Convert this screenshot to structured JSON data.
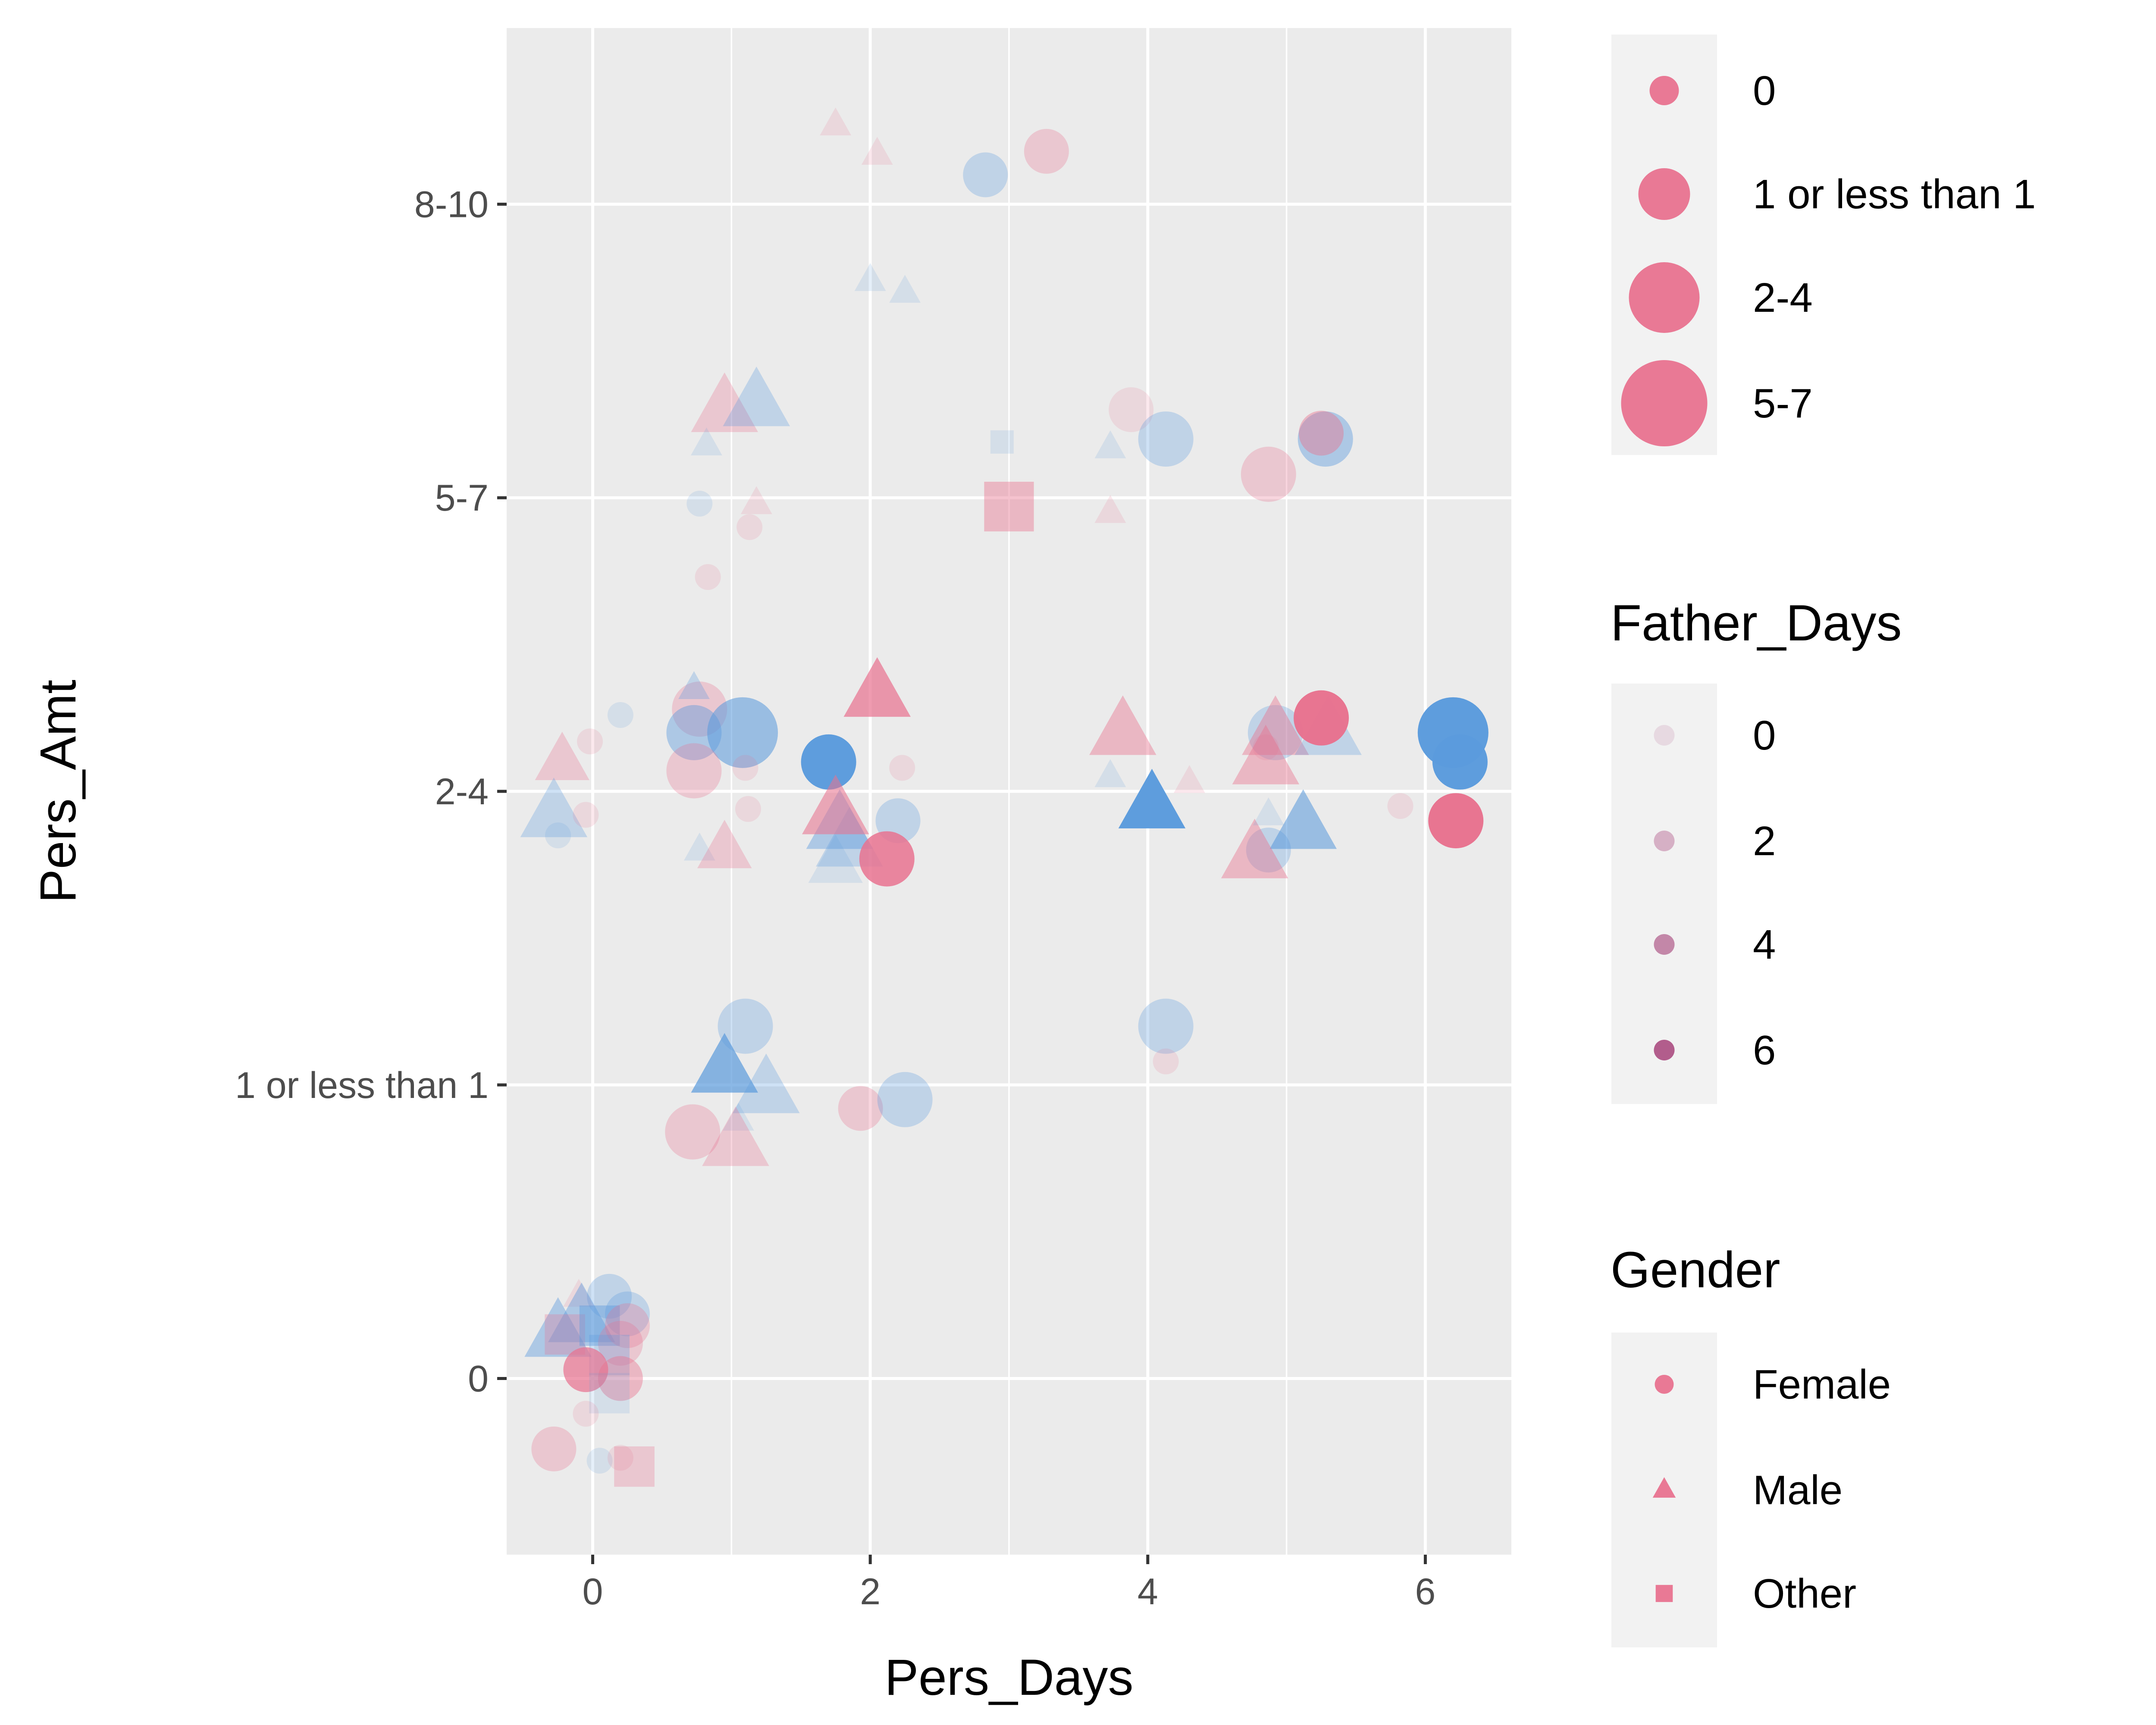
{
  "chart_data": {
    "type": "scatter",
    "title": "",
    "xlabel": "Pers_Days",
    "ylabel": "Pers_Amt",
    "xlim": [
      -0.62,
      6.62
    ],
    "ylim": [
      -0.6,
      4.6
    ],
    "x_ticks": [
      0,
      2,
      4,
      6
    ],
    "y_ticks": [
      {
        "value": 0,
        "label": "0"
      },
      {
        "value": 1,
        "label": "1 or less than 1"
      },
      {
        "value": 2,
        "label": "2-4"
      },
      {
        "value": 3,
        "label": "5-7"
      },
      {
        "value": 4,
        "label": "8-10"
      }
    ],
    "grid": true,
    "legend_position": "right",
    "colors": {
      "female": "#e8728f",
      "male": "#5b9bdc",
      "other": "#e8728f",
      "panel": "#ebebeb",
      "grid": "#ffffff",
      "legend_key_bg": "#f2f2f2"
    },
    "size_legend": {
      "title": "",
      "entries": [
        {
          "label": "0",
          "level": 0
        },
        {
          "label": "1 or less than 1",
          "level": 1
        },
        {
          "label": "2-4",
          "level": 2
        },
        {
          "label": "5-7",
          "level": 3
        }
      ]
    },
    "alpha_legend": {
      "title": "Father_Days",
      "entries": [
        {
          "label": "0",
          "value": 0
        },
        {
          "label": "2",
          "value": 2
        },
        {
          "label": "4",
          "value": 4
        },
        {
          "label": "6",
          "value": 6
        }
      ]
    },
    "shape_legend": {
      "title": "Gender",
      "entries": [
        {
          "label": "Female",
          "shape": "circle"
        },
        {
          "label": "Male",
          "shape": "triangle"
        },
        {
          "label": "Other",
          "shape": "square"
        }
      ]
    },
    "points": [
      {
        "x": 2.83,
        "y": 4.1,
        "gender": "Male",
        "shape": "circle",
        "size": 1,
        "alpha": 1
      },
      {
        "x": 3.27,
        "y": 4.18,
        "gender": "Female",
        "shape": "circle",
        "size": 1,
        "alpha": 1
      },
      {
        "x": 1.75,
        "y": 4.27,
        "gender": "Female",
        "shape": "triangle",
        "size": 0,
        "alpha": 0
      },
      {
        "x": 2.05,
        "y": 4.17,
        "gender": "Female",
        "shape": "triangle",
        "size": 0,
        "alpha": 0
      },
      {
        "x": 2.0,
        "y": 3.74,
        "gender": "Male",
        "shape": "triangle",
        "size": 0,
        "alpha": 0
      },
      {
        "x": 2.25,
        "y": 3.7,
        "gender": "Male",
        "shape": "triangle",
        "size": 0,
        "alpha": 0
      },
      {
        "x": 0.95,
        "y": 3.3,
        "gender": "Female",
        "shape": "triangle",
        "size": 2,
        "alpha": 1
      },
      {
        "x": 1.18,
        "y": 3.32,
        "gender": "Male",
        "shape": "triangle",
        "size": 2,
        "alpha": 1
      },
      {
        "x": 0.82,
        "y": 3.18,
        "gender": "Male",
        "shape": "triangle",
        "size": 0,
        "alpha": 0
      },
      {
        "x": 3.88,
        "y": 3.3,
        "gender": "Female",
        "shape": "circle",
        "size": 1,
        "alpha": 0
      },
      {
        "x": 4.13,
        "y": 3.2,
        "gender": "Male",
        "shape": "circle",
        "size": 2,
        "alpha": 1
      },
      {
        "x": 5.28,
        "y": 3.2,
        "gender": "Male",
        "shape": "circle",
        "size": 2,
        "alpha": 2
      },
      {
        "x": 5.25,
        "y": 3.22,
        "gender": "Female",
        "shape": "circle",
        "size": 1,
        "alpha": 2
      },
      {
        "x": 4.87,
        "y": 3.08,
        "gender": "Female",
        "shape": "circle",
        "size": 2,
        "alpha": 1
      },
      {
        "x": 2.95,
        "y": 3.19,
        "gender": "Male",
        "shape": "square",
        "size": 0,
        "alpha": 0
      },
      {
        "x": 3.73,
        "y": 3.17,
        "gender": "Male",
        "shape": "triangle",
        "size": 0,
        "alpha": 0
      },
      {
        "x": 3.0,
        "y": 2.97,
        "gender": "Female",
        "shape": "square",
        "size": 2,
        "alpha": 2
      },
      {
        "x": 3.73,
        "y": 2.95,
        "gender": "Female",
        "shape": "triangle",
        "size": 0,
        "alpha": 0
      },
      {
        "x": 0.77,
        "y": 2.98,
        "gender": "Male",
        "shape": "circle",
        "size": 0,
        "alpha": 0
      },
      {
        "x": 1.18,
        "y": 2.98,
        "gender": "Female",
        "shape": "triangle",
        "size": 0,
        "alpha": 0
      },
      {
        "x": 1.13,
        "y": 2.9,
        "gender": "Female",
        "shape": "circle",
        "size": 0,
        "alpha": 0
      },
      {
        "x": 0.83,
        "y": 2.73,
        "gender": "Female",
        "shape": "circle",
        "size": 0,
        "alpha": 0
      },
      {
        "x": 0.77,
        "y": 2.28,
        "gender": "Female",
        "shape": "circle",
        "size": 2,
        "alpha": 1
      },
      {
        "x": 0.73,
        "y": 2.2,
        "gender": "Male",
        "shape": "circle",
        "size": 2,
        "alpha": 2
      },
      {
        "x": 1.08,
        "y": 2.2,
        "gender": "Male",
        "shape": "circle",
        "size": 3,
        "alpha": 3
      },
      {
        "x": 0.73,
        "y": 2.07,
        "gender": "Female",
        "shape": "circle",
        "size": 2,
        "alpha": 1
      },
      {
        "x": 0.73,
        "y": 2.35,
        "gender": "Male",
        "shape": "triangle",
        "size": 0,
        "alpha": 1
      },
      {
        "x": 0.2,
        "y": 2.26,
        "gender": "Male",
        "shape": "circle",
        "size": 0,
        "alpha": 0
      },
      {
        "x": -0.02,
        "y": 2.17,
        "gender": "Female",
        "shape": "circle",
        "size": 0,
        "alpha": 0
      },
      {
        "x": -0.22,
        "y": 2.1,
        "gender": "Female",
        "shape": "triangle",
        "size": 1,
        "alpha": 1
      },
      {
        "x": -0.28,
        "y": 1.92,
        "gender": "Male",
        "shape": "triangle",
        "size": 2,
        "alpha": 1
      },
      {
        "x": -0.25,
        "y": 1.85,
        "gender": "Male",
        "shape": "circle",
        "size": 0,
        "alpha": 0
      },
      {
        "x": -0.05,
        "y": 1.92,
        "gender": "Female",
        "shape": "circle",
        "size": 0,
        "alpha": 0
      },
      {
        "x": 0.77,
        "y": 1.8,
        "gender": "Male",
        "shape": "triangle",
        "size": 0,
        "alpha": 0
      },
      {
        "x": 0.95,
        "y": 1.8,
        "gender": "Female",
        "shape": "triangle",
        "size": 1,
        "alpha": 1
      },
      {
        "x": 1.1,
        "y": 2.08,
        "gender": "Female",
        "shape": "circle",
        "size": 0,
        "alpha": 0
      },
      {
        "x": 1.12,
        "y": 1.94,
        "gender": "Female",
        "shape": "circle",
        "size": 0,
        "alpha": 0
      },
      {
        "x": 1.7,
        "y": 2.1,
        "gender": "Male",
        "shape": "circle",
        "size": 2,
        "alpha": 6
      },
      {
        "x": 2.05,
        "y": 2.33,
        "gender": "Female",
        "shape": "triangle",
        "size": 2,
        "alpha": 4
      },
      {
        "x": 2.23,
        "y": 2.08,
        "gender": "Female",
        "shape": "circle",
        "size": 0,
        "alpha": 0
      },
      {
        "x": 2.2,
        "y": 1.9,
        "gender": "Male",
        "shape": "circle",
        "size": 1,
        "alpha": 1
      },
      {
        "x": 1.78,
        "y": 1.88,
        "gender": "Male",
        "shape": "triangle",
        "size": 2,
        "alpha": 2
      },
      {
        "x": 1.85,
        "y": 1.82,
        "gender": "Male",
        "shape": "triangle",
        "size": 2,
        "alpha": 1
      },
      {
        "x": 1.75,
        "y": 1.75,
        "gender": "Male",
        "shape": "triangle",
        "size": 1,
        "alpha": 0
      },
      {
        "x": 1.75,
        "y": 1.93,
        "gender": "Female",
        "shape": "triangle",
        "size": 2,
        "alpha": 3
      },
      {
        "x": 2.12,
        "y": 1.77,
        "gender": "Female",
        "shape": "circle",
        "size": 2,
        "alpha": 5
      },
      {
        "x": 3.82,
        "y": 2.2,
        "gender": "Female",
        "shape": "triangle",
        "size": 2,
        "alpha": 2
      },
      {
        "x": 4.03,
        "y": 1.95,
        "gender": "Male",
        "shape": "triangle",
        "size": 2,
        "alpha": 6
      },
      {
        "x": 3.73,
        "y": 2.05,
        "gender": "Male",
        "shape": "triangle",
        "size": 0,
        "alpha": 0
      },
      {
        "x": 4.3,
        "y": 2.03,
        "gender": "Female",
        "shape": "triangle",
        "size": 0,
        "alpha": 0
      },
      {
        "x": 4.92,
        "y": 2.2,
        "gender": "Male",
        "shape": "circle",
        "size": 2,
        "alpha": 1
      },
      {
        "x": 4.92,
        "y": 2.2,
        "gender": "Female",
        "shape": "triangle",
        "size": 2,
        "alpha": 2
      },
      {
        "x": 5.3,
        "y": 2.2,
        "gender": "Male",
        "shape": "triangle",
        "size": 2,
        "alpha": 1
      },
      {
        "x": 4.85,
        "y": 2.1,
        "gender": "Female",
        "shape": "triangle",
        "size": 2,
        "alpha": 2
      },
      {
        "x": 4.85,
        "y": 2.15,
        "gender": "Female",
        "shape": "circle",
        "size": 0,
        "alpha": 0
      },
      {
        "x": 5.25,
        "y": 2.25,
        "gender": "Female",
        "shape": "circle",
        "size": 2,
        "alpha": 6
      },
      {
        "x": 5.12,
        "y": 1.88,
        "gender": "Male",
        "shape": "triangle",
        "size": 2,
        "alpha": 3
      },
      {
        "x": 4.87,
        "y": 1.8,
        "gender": "Male",
        "shape": "circle",
        "size": 1,
        "alpha": 1
      },
      {
        "x": 4.77,
        "y": 1.78,
        "gender": "Female",
        "shape": "triangle",
        "size": 2,
        "alpha": 2
      },
      {
        "x": 4.87,
        "y": 1.92,
        "gender": "Male",
        "shape": "triangle",
        "size": 0,
        "alpha": 0
      },
      {
        "x": 6.2,
        "y": 2.2,
        "gender": "Male",
        "shape": "circle",
        "size": 3,
        "alpha": 6
      },
      {
        "x": 6.25,
        "y": 2.1,
        "gender": "Male",
        "shape": "circle",
        "size": 2,
        "alpha": 6
      },
      {
        "x": 6.22,
        "y": 1.9,
        "gender": "Female",
        "shape": "circle",
        "size": 2,
        "alpha": 6
      },
      {
        "x": 5.82,
        "y": 1.95,
        "gender": "Female",
        "shape": "circle",
        "size": 0,
        "alpha": 0
      },
      {
        "x": 1.1,
        "y": 1.2,
        "gender": "Male",
        "shape": "circle",
        "size": 2,
        "alpha": 1
      },
      {
        "x": 4.13,
        "y": 1.2,
        "gender": "Male",
        "shape": "circle",
        "size": 2,
        "alpha": 1
      },
      {
        "x": 4.13,
        "y": 1.08,
        "gender": "Female",
        "shape": "circle",
        "size": 0,
        "alpha": 0
      },
      {
        "x": 0.95,
        "y": 1.05,
        "gender": "Male",
        "shape": "triangle",
        "size": 2,
        "alpha": 4
      },
      {
        "x": 1.25,
        "y": 0.98,
        "gender": "Male",
        "shape": "triangle",
        "size": 2,
        "alpha": 1
      },
      {
        "x": 1.05,
        "y": 0.88,
        "gender": "Male",
        "shape": "triangle",
        "size": 0,
        "alpha": 0
      },
      {
        "x": 1.03,
        "y": 0.8,
        "gender": "Female",
        "shape": "triangle",
        "size": 2,
        "alpha": 1
      },
      {
        "x": 0.72,
        "y": 0.84,
        "gender": "Female",
        "shape": "circle",
        "size": 2,
        "alpha": 1
      },
      {
        "x": 1.93,
        "y": 0.92,
        "gender": "Female",
        "shape": "circle",
        "size": 1,
        "alpha": 1
      },
      {
        "x": 2.25,
        "y": 0.95,
        "gender": "Male",
        "shape": "circle",
        "size": 2,
        "alpha": 1
      },
      {
        "x": 0.12,
        "y": 0.28,
        "gender": "Male",
        "shape": "circle",
        "size": 1,
        "alpha": 1
      },
      {
        "x": 0.25,
        "y": 0.22,
        "gender": "Male",
        "shape": "circle",
        "size": 1,
        "alpha": 1
      },
      {
        "x": -0.1,
        "y": 0.28,
        "gender": "Female",
        "shape": "triangle",
        "size": 0,
        "alpha": 0
      },
      {
        "x": -0.08,
        "y": 0.2,
        "gender": "Male",
        "shape": "triangle",
        "size": 2,
        "alpha": 2
      },
      {
        "x": -0.25,
        "y": 0.15,
        "gender": "Male",
        "shape": "triangle",
        "size": 2,
        "alpha": 2
      },
      {
        "x": -0.2,
        "y": 0.15,
        "gender": "Female",
        "shape": "square",
        "size": 1,
        "alpha": 1
      },
      {
        "x": 0.05,
        "y": 0.18,
        "gender": "Male",
        "shape": "square",
        "size": 1,
        "alpha": 2
      },
      {
        "x": 0.25,
        "y": 0.18,
        "gender": "Female",
        "shape": "circle",
        "size": 1,
        "alpha": 1
      },
      {
        "x": 0.2,
        "y": 0.12,
        "gender": "Female",
        "shape": "circle",
        "size": 1,
        "alpha": 1
      },
      {
        "x": 0.12,
        "y": 0.08,
        "gender": "Male",
        "shape": "square",
        "size": 1,
        "alpha": 1
      },
      {
        "x": -0.05,
        "y": 0.03,
        "gender": "Female",
        "shape": "circle",
        "size": 1,
        "alpha": 4
      },
      {
        "x": 0.2,
        "y": 0.0,
        "gender": "Female",
        "shape": "circle",
        "size": 1,
        "alpha": 2
      },
      {
        "x": 0.12,
        "y": -0.05,
        "gender": "Male",
        "shape": "square",
        "size": 1,
        "alpha": 0
      },
      {
        "x": -0.05,
        "y": -0.12,
        "gender": "Female",
        "shape": "circle",
        "size": 0,
        "alpha": 0
      },
      {
        "x": 0.05,
        "y": -0.28,
        "gender": "Male",
        "shape": "circle",
        "size": 0,
        "alpha": 0
      },
      {
        "x": 0.2,
        "y": -0.27,
        "gender": "Female",
        "shape": "circle",
        "size": 0,
        "alpha": 0
      },
      {
        "x": -0.28,
        "y": -0.24,
        "gender": "Female",
        "shape": "circle",
        "size": 1,
        "alpha": 1
      },
      {
        "x": 0.3,
        "y": -0.3,
        "gender": "Female",
        "shape": "square",
        "size": 1,
        "alpha": 1
      }
    ]
  }
}
